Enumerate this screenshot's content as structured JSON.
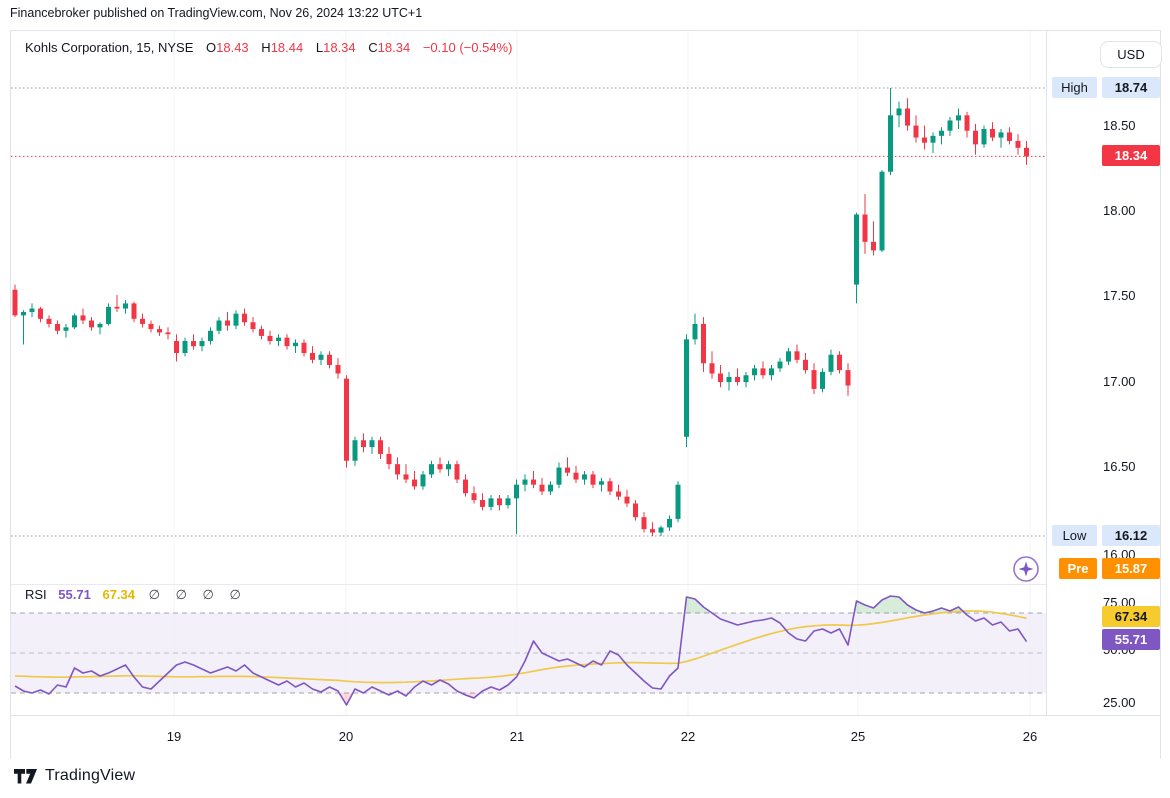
{
  "attribution": "Financebroker published on TradingView.com, Nov 26, 2024 13:22 UTC+1",
  "header": {
    "symbol": "Kohls Corporation, 15, NYSE",
    "ohlc": {
      "o_label": "O",
      "o": "18.43",
      "h_label": "H",
      "h": "18.44",
      "l_label": "L",
      "l": "18.34",
      "c_label": "C",
      "c": "18.34",
      "change": "−0.10 (−0.54%)"
    }
  },
  "price_axis": {
    "currency_button": "USD",
    "ticks": [
      "18.50",
      "18.00",
      "17.50",
      "17.00",
      "16.50",
      "16.00"
    ],
    "high_tag": {
      "label": "High",
      "value": "18.74"
    },
    "last_tag": {
      "value": "18.34"
    },
    "low_tag": {
      "label": "Low",
      "value": "16.12"
    },
    "pre_tag": {
      "label": "Pre",
      "value": "15.87"
    }
  },
  "rsi_panel": {
    "label": "RSI",
    "value": "55.71",
    "ma_value": "67.34",
    "empty_params": "∅ ∅ ∅ ∅",
    "ticks": [
      "75.00",
      "50.00",
      "25.00"
    ],
    "ma_tag": "67.34",
    "value_tag": "55.71"
  },
  "time_axis": {
    "labels": [
      "19",
      "20",
      "21",
      "22",
      "25",
      "26"
    ]
  },
  "footer": {
    "logo_text": "TradingView"
  },
  "colors": {
    "up": "#089981",
    "down": "#F23645",
    "grid": "#EEF0F5",
    "dotted": "#9598A1",
    "rsi_line": "#7E57C2",
    "rsi_ma": "#EFC94C",
    "band_fill": "rgba(126,87,194,0.09)",
    "overbought_fill": "rgba(76,175,80,0.22)",
    "oversold_fill": "rgba(242,54,69,0.18)"
  },
  "chart_data": {
    "type": "candlestick",
    "title": "Kohls Corporation, 15, NYSE",
    "interval_minutes": 15,
    "x_labels": [
      "19",
      "20",
      "21",
      "22",
      "25",
      "26"
    ],
    "session_start_indices": [
      0,
      19,
      39,
      59,
      79,
      99
    ],
    "price_ticks": [
      18.5,
      18.0,
      17.5,
      17.0,
      16.5,
      16.0
    ],
    "ylim": [
      15.84,
      19.07
    ],
    "high": 18.74,
    "low": 16.12,
    "last": 18.34,
    "premarket": 15.87,
    "open_disp": 18.43,
    "high_disp": 18.44,
    "low_disp": 18.34,
    "close_disp": 18.34,
    "candles": [
      [
        17.56,
        17.59,
        17.4,
        17.41
      ],
      [
        17.41,
        17.44,
        17.24,
        17.43
      ],
      [
        17.43,
        17.48,
        17.4,
        17.45
      ],
      [
        17.45,
        17.46,
        17.37,
        17.39
      ],
      [
        17.39,
        17.41,
        17.34,
        17.36
      ],
      [
        17.36,
        17.38,
        17.3,
        17.32
      ],
      [
        17.32,
        17.36,
        17.28,
        17.34
      ],
      [
        17.34,
        17.42,
        17.33,
        17.41
      ],
      [
        17.41,
        17.45,
        17.36,
        17.38
      ],
      [
        17.38,
        17.4,
        17.32,
        17.34
      ],
      [
        17.34,
        17.37,
        17.3,
        17.36
      ],
      [
        17.36,
        17.48,
        17.35,
        17.46
      ],
      [
        17.46,
        17.53,
        17.43,
        17.45
      ],
      [
        17.45,
        17.5,
        17.42,
        17.48
      ],
      [
        17.48,
        17.49,
        17.37,
        17.39
      ],
      [
        17.39,
        17.42,
        17.34,
        17.36
      ],
      [
        17.36,
        17.38,
        17.31,
        17.33
      ],
      [
        17.33,
        17.35,
        17.29,
        17.31
      ],
      [
        17.31,
        17.34,
        17.27,
        17.3
      ],
      [
        17.26,
        17.3,
        17.14,
        17.19
      ],
      [
        17.19,
        17.28,
        17.17,
        17.26
      ],
      [
        17.26,
        17.3,
        17.21,
        17.23
      ],
      [
        17.23,
        17.28,
        17.2,
        17.26
      ],
      [
        17.26,
        17.34,
        17.24,
        17.32
      ],
      [
        17.32,
        17.4,
        17.3,
        17.38
      ],
      [
        17.38,
        17.43,
        17.32,
        17.35
      ],
      [
        17.35,
        17.44,
        17.33,
        17.42
      ],
      [
        17.42,
        17.45,
        17.35,
        17.37
      ],
      [
        17.37,
        17.4,
        17.31,
        17.33
      ],
      [
        17.33,
        17.35,
        17.27,
        17.29
      ],
      [
        17.29,
        17.32,
        17.24,
        17.26
      ],
      [
        17.26,
        17.3,
        17.23,
        17.28
      ],
      [
        17.28,
        17.3,
        17.21,
        17.23
      ],
      [
        17.23,
        17.27,
        17.19,
        17.25
      ],
      [
        17.25,
        17.27,
        17.17,
        17.19
      ],
      [
        17.19,
        17.23,
        17.13,
        17.15
      ],
      [
        17.15,
        17.2,
        17.12,
        17.18
      ],
      [
        17.18,
        17.2,
        17.1,
        17.12
      ],
      [
        17.12,
        17.16,
        17.04,
        17.07
      ],
      [
        17.04,
        17.06,
        16.52,
        16.56
      ],
      [
        16.56,
        16.7,
        16.53,
        16.68
      ],
      [
        16.68,
        16.72,
        16.61,
        16.64
      ],
      [
        16.64,
        16.7,
        16.6,
        16.68
      ],
      [
        16.68,
        16.7,
        16.57,
        16.6
      ],
      [
        16.6,
        16.64,
        16.51,
        16.54
      ],
      [
        16.54,
        16.58,
        16.45,
        16.48
      ],
      [
        16.48,
        16.54,
        16.43,
        16.45
      ],
      [
        16.45,
        16.5,
        16.39,
        16.41
      ],
      [
        16.41,
        16.5,
        16.39,
        16.48
      ],
      [
        16.48,
        16.56,
        16.46,
        16.54
      ],
      [
        16.54,
        16.58,
        16.49,
        16.51
      ],
      [
        16.51,
        16.56,
        16.47,
        16.54
      ],
      [
        16.54,
        16.56,
        16.43,
        16.45
      ],
      [
        16.45,
        16.48,
        16.35,
        16.37
      ],
      [
        16.37,
        16.41,
        16.31,
        16.33
      ],
      [
        16.33,
        16.37,
        16.27,
        16.29
      ],
      [
        16.29,
        16.36,
        16.27,
        16.34
      ],
      [
        16.34,
        16.36,
        16.27,
        16.3
      ],
      [
        16.3,
        16.36,
        16.28,
        16.34
      ],
      [
        16.34,
        16.45,
        16.13,
        16.42
      ],
      [
        16.42,
        16.48,
        16.38,
        16.45
      ],
      [
        16.45,
        16.5,
        16.4,
        16.42
      ],
      [
        16.42,
        16.46,
        16.36,
        16.38
      ],
      [
        16.38,
        16.44,
        16.36,
        16.42
      ],
      [
        16.42,
        16.55,
        16.4,
        16.52
      ],
      [
        16.52,
        16.58,
        16.47,
        16.49
      ],
      [
        16.49,
        16.53,
        16.43,
        16.45
      ],
      [
        16.45,
        16.5,
        16.42,
        16.48
      ],
      [
        16.48,
        16.5,
        16.4,
        16.42
      ],
      [
        16.42,
        16.46,
        16.38,
        16.44
      ],
      [
        16.44,
        16.46,
        16.36,
        16.38
      ],
      [
        16.38,
        16.42,
        16.33,
        16.35
      ],
      [
        16.35,
        16.39,
        16.29,
        16.31
      ],
      [
        16.31,
        16.33,
        16.21,
        16.23
      ],
      [
        16.23,
        16.26,
        16.14,
        16.16
      ],
      [
        16.16,
        16.2,
        16.12,
        16.14
      ],
      [
        16.14,
        16.18,
        16.12,
        16.17
      ],
      [
        16.17,
        16.24,
        16.15,
        16.22
      ],
      [
        16.22,
        16.44,
        16.2,
        16.42
      ],
      [
        16.7,
        17.3,
        16.64,
        17.27
      ],
      [
        17.27,
        17.42,
        17.24,
        17.36
      ],
      [
        17.36,
        17.4,
        17.08,
        17.13
      ],
      [
        17.13,
        17.2,
        17.04,
        17.07
      ],
      [
        17.07,
        17.12,
        16.99,
        17.02
      ],
      [
        17.02,
        17.08,
        16.97,
        17.05
      ],
      [
        17.05,
        17.1,
        17.0,
        17.02
      ],
      [
        17.02,
        17.08,
        16.99,
        17.06
      ],
      [
        17.06,
        17.12,
        17.03,
        17.1
      ],
      [
        17.1,
        17.14,
        17.04,
        17.06
      ],
      [
        17.06,
        17.12,
        17.03,
        17.1
      ],
      [
        17.1,
        17.16,
        17.08,
        17.14
      ],
      [
        17.14,
        17.22,
        17.12,
        17.2
      ],
      [
        17.2,
        17.24,
        17.13,
        17.15
      ],
      [
        17.15,
        17.19,
        17.07,
        17.09
      ],
      [
        17.09,
        17.13,
        16.95,
        16.98
      ],
      [
        16.98,
        17.1,
        16.96,
        17.08
      ],
      [
        17.08,
        17.21,
        17.06,
        17.18
      ],
      [
        17.18,
        17.2,
        17.07,
        17.09
      ],
      [
        17.09,
        17.13,
        16.94,
        17.0
      ],
      [
        17.59,
        18.01,
        17.48,
        18.0
      ],
      [
        18.0,
        18.12,
        17.77,
        17.84
      ],
      [
        17.84,
        17.96,
        17.76,
        17.79
      ],
      [
        17.79,
        18.26,
        17.78,
        18.25
      ],
      [
        18.25,
        18.74,
        18.23,
        18.58
      ],
      [
        18.58,
        18.66,
        18.51,
        18.62
      ],
      [
        18.62,
        18.68,
        18.49,
        18.52
      ],
      [
        18.52,
        18.58,
        18.42,
        18.45
      ],
      [
        18.45,
        18.52,
        18.38,
        18.42
      ],
      [
        18.42,
        18.48,
        18.36,
        18.46
      ],
      [
        18.46,
        18.51,
        18.41,
        18.49
      ],
      [
        18.49,
        18.57,
        18.46,
        18.55
      ],
      [
        18.55,
        18.62,
        18.5,
        18.58
      ],
      [
        18.58,
        18.6,
        18.45,
        18.49
      ],
      [
        18.49,
        18.53,
        18.35,
        18.41
      ],
      [
        18.41,
        18.52,
        18.39,
        18.5
      ],
      [
        18.5,
        18.54,
        18.43,
        18.45
      ],
      [
        18.45,
        18.5,
        18.39,
        18.48
      ],
      [
        18.48,
        18.51,
        18.41,
        18.43
      ],
      [
        18.43,
        18.47,
        18.35,
        18.39
      ],
      [
        18.39,
        18.43,
        18.29,
        18.34
      ]
    ],
    "rsi": {
      "levels": [
        70,
        50,
        30
      ],
      "current": 55.71,
      "ma_current": 67.34,
      "values": [
        33.5,
        31,
        30,
        31.5,
        29.5,
        34,
        33,
        42.5,
        40,
        41,
        38.5,
        40,
        42,
        44,
        38,
        33,
        32,
        36,
        40,
        44,
        45.5,
        44,
        42,
        40,
        41.5,
        43,
        41,
        44,
        40,
        38,
        36,
        34,
        36,
        33,
        35,
        32,
        30.5,
        33,
        31,
        24,
        32,
        30,
        33,
        31,
        29,
        31,
        28.5,
        33,
        36,
        34,
        36.5,
        34.5,
        31,
        29,
        27.5,
        31,
        33,
        31.5,
        34,
        38,
        46,
        56,
        50,
        48,
        46,
        47,
        45,
        43,
        46,
        44,
        51,
        49,
        44,
        40,
        36,
        32.5,
        32,
        38.5,
        42.5,
        78,
        77,
        73,
        70,
        67,
        65.5,
        64,
        65,
        66,
        66.5,
        67.5,
        65,
        60,
        57,
        56,
        61,
        62,
        60,
        62,
        54,
        76,
        74,
        72.5,
        76.5,
        78.5,
        78,
        74,
        71.5,
        70,
        71,
        72.5,
        71,
        73,
        69,
        66,
        67.5,
        64,
        65.5,
        61,
        62,
        55.71
      ],
      "ma": [
        38.5,
        38.4,
        38.2,
        38.1,
        38,
        37.9,
        37.9,
        38,
        38.1,
        38.2,
        38.3,
        38.4,
        38.5,
        38.6,
        38.6,
        38.5,
        38.4,
        38.3,
        38.2,
        38.1,
        38.1,
        38.1,
        38.2,
        38.2,
        38.3,
        38.3,
        38.3,
        38.3,
        38.2,
        38.1,
        37.9,
        37.7,
        37.5,
        37.3,
        37.1,
        36.9,
        36.7,
        36.5,
        36.3,
        35.9,
        35.6,
        35.4,
        35.3,
        35.2,
        35.2,
        35.3,
        35.4,
        35.6,
        35.8,
        36,
        36.3,
        36.6,
        36.9,
        37.2,
        37.4,
        37.6,
        37.9,
        38.3,
        38.8,
        39.4,
        40.1,
        40.9,
        41.7,
        42.4,
        43,
        43.5,
        43.9,
        44.2,
        44.5,
        44.7,
        44.9,
        45.1,
        45.2,
        45.2,
        45.1,
        45,
        44.9,
        44.8,
        44.9,
        45.8,
        47,
        48.4,
        49.9,
        51.4,
        52.9,
        54.4,
        55.8,
        57.2,
        58.5,
        59.7,
        60.8,
        61.8,
        62.6,
        63.2,
        63.6,
        63.9,
        64,
        64,
        63.8,
        63.9,
        64.2,
        64.7,
        65.3,
        66,
        66.8,
        67.6,
        68.3,
        69,
        69.6,
        70.1,
        70.5,
        70.8,
        71,
        71,
        70.8,
        70.4,
        69.8,
        69.1,
        68.3,
        67.34
      ]
    }
  }
}
